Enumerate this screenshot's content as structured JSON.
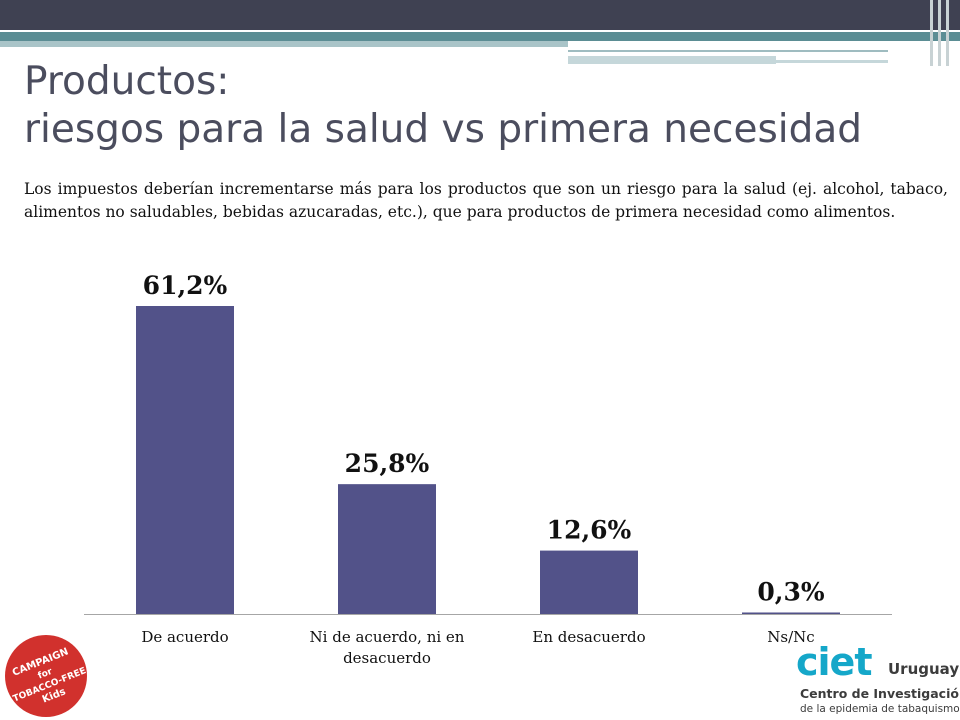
{
  "slide": {
    "title_line1": "Productos:",
    "title_line2": "riesgos para la salud vs primera necesidad",
    "description": "Los impuestos deberían incrementarse más para los productos que son un riesgo para la salud (ej. alcohol, tabaco, alimentos no saludables, bebidas azucaradas, etc.), que para productos de primera necesidad como alimentos."
  },
  "chart_data": {
    "type": "bar",
    "categories": [
      "De acuerdo",
      "Ni de acuerdo, ni en desacuerdo",
      "En desacuerdo",
      "Ns/Nc"
    ],
    "category_lines": [
      [
        "De acuerdo"
      ],
      [
        "Ni de acuerdo, ni en",
        "desacuerdo"
      ],
      [
        "En desacuerdo"
      ],
      [
        "Ns/Nc"
      ]
    ],
    "values": [
      61.2,
      25.8,
      12.6,
      0.3
    ],
    "data_labels": [
      "61,2%",
      "25,8%",
      "12,6%",
      "0,3%"
    ],
    "ylim": [
      0,
      61.2
    ],
    "grid": false,
    "legend": "none",
    "bar_color": "#525289"
  },
  "logos": {
    "left_lines": [
      "CAMPAIGN",
      "for",
      "TOBACCO-FREE",
      "Kids"
    ],
    "left_color": "#d1312d",
    "right_word": "ciet",
    "right_country": "Uruguay",
    "right_line1": "Centro de Investigación",
    "right_line2": "de la epidemia de tabaquismo",
    "right_color": "#15a7c9"
  }
}
